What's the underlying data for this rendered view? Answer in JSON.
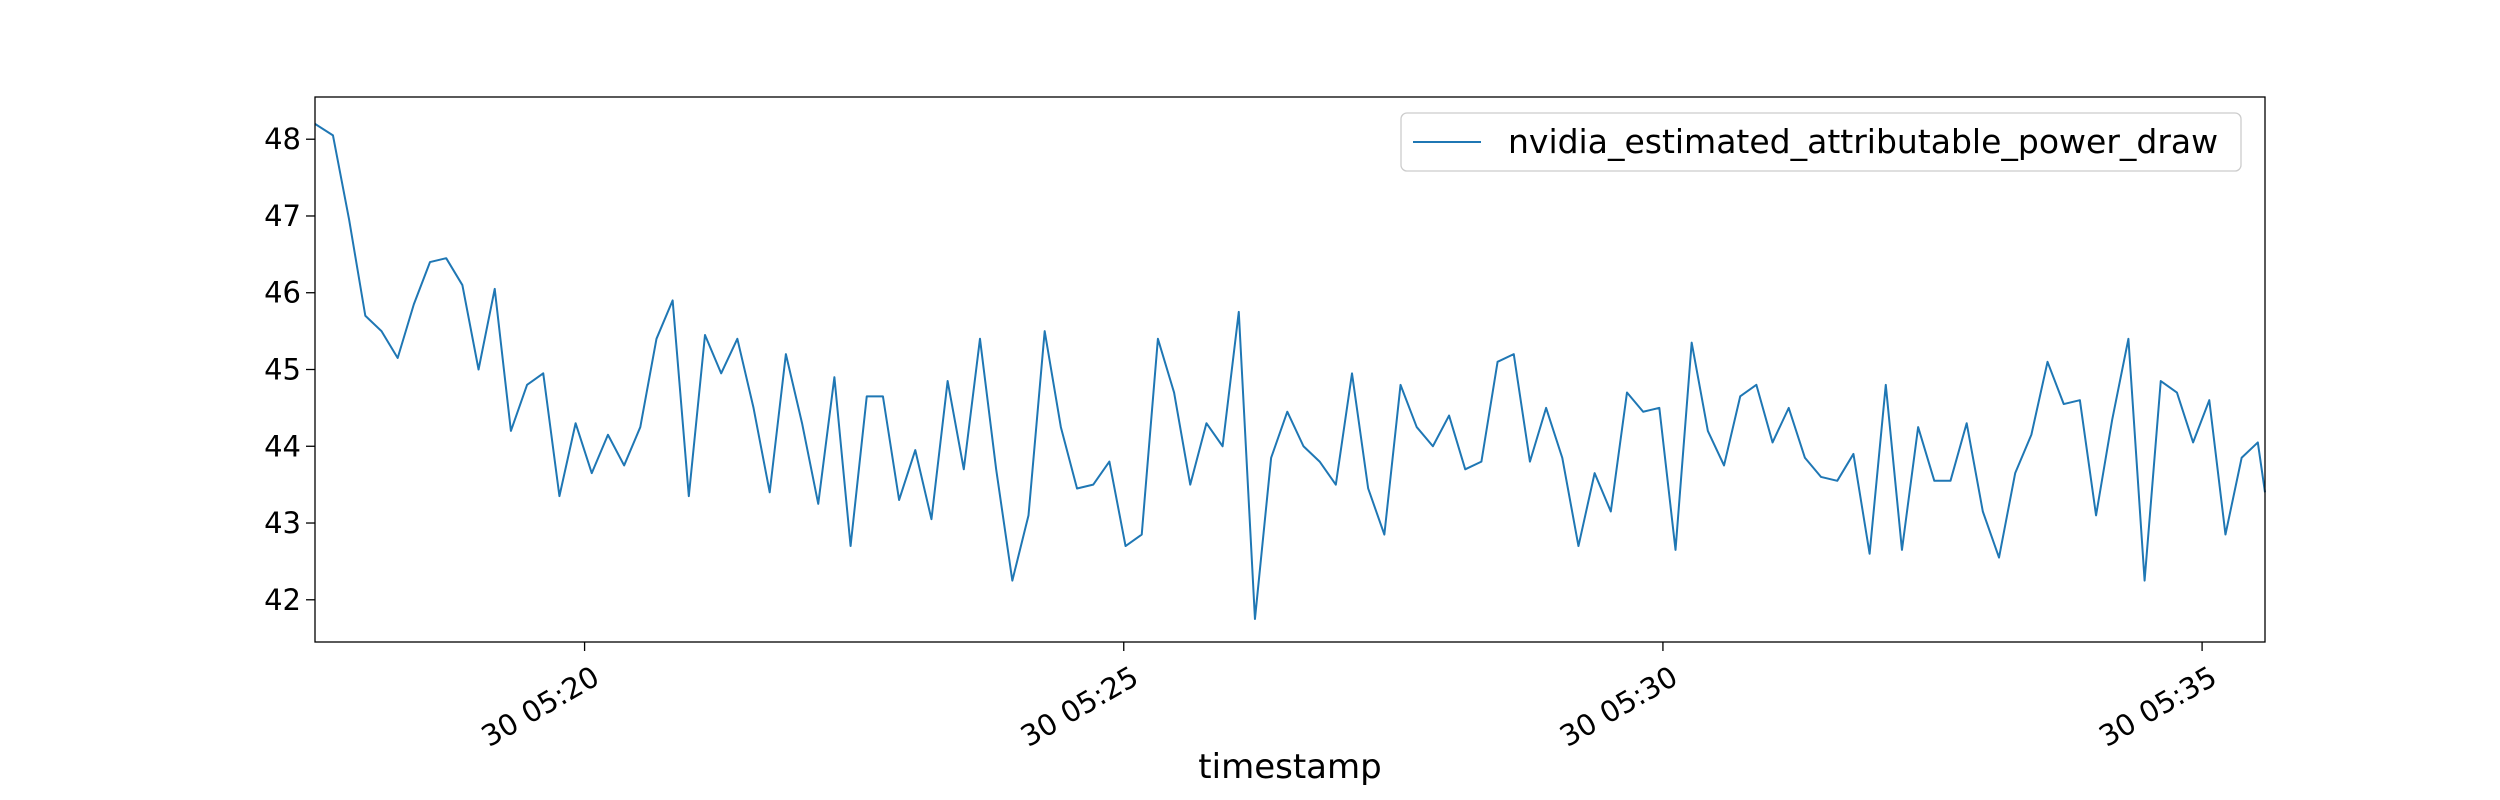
{
  "chart_data": {
    "type": "line",
    "title": "",
    "xlabel": "timestamp",
    "ylabel": "",
    "x_unit": "minutes",
    "xlim": [
      "05:17:30",
      "05:35:35"
    ],
    "ylim": [
      41.45,
      48.55
    ],
    "grid": false,
    "legend": {
      "position": "top-right"
    },
    "x_ticks": [
      {
        "value": "05:20",
        "label": "30 05:20"
      },
      {
        "value": "05:25",
        "label": "30 05:25"
      },
      {
        "value": "05:30",
        "label": "30 05:30"
      },
      {
        "value": "05:35",
        "label": "30 05:35"
      }
    ],
    "y_ticks": [
      42,
      43,
      44,
      45,
      46,
      47,
      48
    ],
    "series": [
      {
        "name": "nvidia_estimated_attributable_power_draw",
        "color": "#1f77b4",
        "x": [
          "05:17:30",
          "05:17:40",
          "05:17:49",
          "05:17:58",
          "05:18:07",
          "05:18:16",
          "05:18:25",
          "05:18:34",
          "05:18:43",
          "05:18:52",
          "05:19:01",
          "05:19:10",
          "05:19:19",
          "05:19:28",
          "05:19:37",
          "05:19:46",
          "05:19:55",
          "05:20:04",
          "05:20:13",
          "05:20:22",
          "05:20:31",
          "05:20:40",
          "05:20:49",
          "05:20:58",
          "05:21:07",
          "05:21:16",
          "05:21:25",
          "05:21:34",
          "05:21:43",
          "05:21:52",
          "05:22:01",
          "05:22:10",
          "05:22:19",
          "05:22:28",
          "05:22:37",
          "05:22:46",
          "05:22:55",
          "05:23:04",
          "05:23:13",
          "05:23:22",
          "05:23:31",
          "05:23:40",
          "05:23:49",
          "05:23:58",
          "05:24:07",
          "05:24:16",
          "05:24:25",
          "05:24:34",
          "05:24:43",
          "05:24:52",
          "05:25:01",
          "05:25:10",
          "05:25:19",
          "05:25:28",
          "05:25:37",
          "05:25:46",
          "05:25:55",
          "05:26:04",
          "05:26:13",
          "05:26:22",
          "05:26:31",
          "05:26:40",
          "05:26:49",
          "05:26:58",
          "05:27:07",
          "05:27:16",
          "05:27:25",
          "05:27:34",
          "05:27:43",
          "05:27:52",
          "05:28:01",
          "05:28:10",
          "05:28:19",
          "05:28:28",
          "05:28:37",
          "05:28:46",
          "05:28:55",
          "05:29:04",
          "05:29:13",
          "05:29:22",
          "05:29:31",
          "05:29:40",
          "05:29:49",
          "05:29:58",
          "05:30:07",
          "05:30:16",
          "05:30:25",
          "05:30:34",
          "05:30:43",
          "05:30:52",
          "05:31:01",
          "05:31:10",
          "05:31:19",
          "05:31:28",
          "05:31:37",
          "05:31:46",
          "05:31:55",
          "05:32:04",
          "05:32:13",
          "05:32:22",
          "05:32:31",
          "05:32:40",
          "05:32:49",
          "05:32:58",
          "05:33:07",
          "05:33:16",
          "05:33:25",
          "05:33:34",
          "05:33:43",
          "05:33:52",
          "05:34:01",
          "05:34:10",
          "05:34:19",
          "05:34:28",
          "05:34:37",
          "05:34:46",
          "05:34:55",
          "05:35:04",
          "05:35:13",
          "05:35:22",
          "05:35:31",
          "05:35:35"
        ],
        "y": [
          48.2,
          48.05,
          46.95,
          45.7,
          45.5,
          45.15,
          45.85,
          46.4,
          46.45,
          46.1,
          45.0,
          46.05,
          44.2,
          44.8,
          44.95,
          43.35,
          44.3,
          43.65,
          44.15,
          43.75,
          44.25,
          45.4,
          45.9,
          43.35,
          45.45,
          44.95,
          45.4,
          44.5,
          43.4,
          45.2,
          44.3,
          43.25,
          44.9,
          42.7,
          44.65,
          44.65,
          43.3,
          43.95,
          43.05,
          44.85,
          43.7,
          45.4,
          43.7,
          42.25,
          43.1,
          45.5,
          44.25,
          43.45,
          43.5,
          43.8,
          42.7,
          42.85,
          45.4,
          44.7,
          43.5,
          44.3,
          44.0,
          45.75,
          41.75,
          43.85,
          44.45,
          44.0,
          43.8,
          43.5,
          44.95,
          43.45,
          42.85,
          44.8,
          44.25,
          44.0,
          44.4,
          43.7,
          43.8,
          45.1,
          45.2,
          43.8,
          44.5,
          43.85,
          42.7,
          43.65,
          43.15,
          44.7,
          44.45,
          44.5,
          42.65,
          45.35,
          44.2,
          43.75,
          44.65,
          44.8,
          44.05,
          44.5,
          43.85,
          43.6,
          43.55,
          43.9,
          42.6,
          44.8,
          42.65,
          44.25,
          43.55,
          43.55,
          44.3,
          43.15,
          42.55,
          43.65,
          44.15,
          45.1,
          44.55,
          44.6,
          43.1,
          44.35,
          45.4,
          42.25,
          44.85,
          44.7,
          44.05,
          44.6,
          42.85,
          43.85,
          44.05,
          43.4
        ]
      }
    ]
  }
}
